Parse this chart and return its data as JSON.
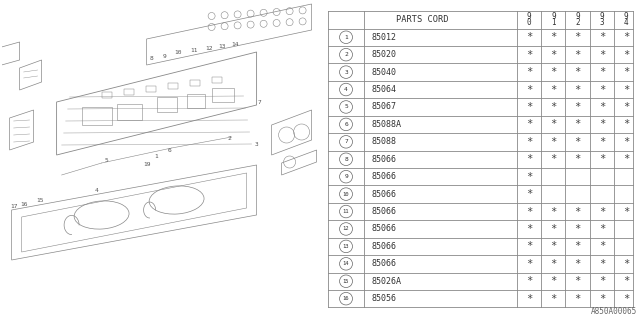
{
  "watermark": "A850A00065",
  "table_header_col1": "PARTS CORD",
  "table_header_years": [
    "9\n0",
    "9\n1",
    "9\n2",
    "9\n3",
    "9\n4"
  ],
  "rows": [
    {
      "num": 1,
      "part": "85012",
      "marks": [
        1,
        1,
        1,
        1,
        1
      ]
    },
    {
      "num": 2,
      "part": "85020",
      "marks": [
        1,
        1,
        1,
        1,
        1
      ]
    },
    {
      "num": 3,
      "part": "85040",
      "marks": [
        1,
        1,
        1,
        1,
        1
      ]
    },
    {
      "num": 4,
      "part": "85064",
      "marks": [
        1,
        1,
        1,
        1,
        1
      ]
    },
    {
      "num": 5,
      "part": "85067",
      "marks": [
        1,
        1,
        1,
        1,
        1
      ]
    },
    {
      "num": 6,
      "part": "85088A",
      "marks": [
        1,
        1,
        1,
        1,
        1
      ]
    },
    {
      "num": 7,
      "part": "85088",
      "marks": [
        1,
        1,
        1,
        1,
        1
      ]
    },
    {
      "num": 8,
      "part": "85066",
      "marks": [
        1,
        1,
        1,
        1,
        1
      ]
    },
    {
      "num": 9,
      "part": "85066",
      "marks": [
        1,
        0,
        0,
        0,
        0
      ]
    },
    {
      "num": 10,
      "part": "85066",
      "marks": [
        1,
        0,
        0,
        0,
        0
      ]
    },
    {
      "num": 11,
      "part": "85066",
      "marks": [
        1,
        1,
        1,
        1,
        1
      ]
    },
    {
      "num": 12,
      "part": "85066",
      "marks": [
        1,
        1,
        1,
        1,
        0
      ]
    },
    {
      "num": 13,
      "part": "85066",
      "marks": [
        1,
        1,
        1,
        1,
        0
      ]
    },
    {
      "num": 14,
      "part": "85066",
      "marks": [
        1,
        1,
        1,
        1,
        1
      ]
    },
    {
      "num": 15,
      "part": "85026A",
      "marks": [
        1,
        1,
        1,
        1,
        1
      ]
    },
    {
      "num": 16,
      "part": "85056",
      "marks": [
        1,
        1,
        1,
        1,
        1
      ]
    }
  ],
  "bg_color": "#ffffff",
  "line_color": "#999999",
  "text_color": "#444444",
  "draw_color": "#aaaaaa"
}
